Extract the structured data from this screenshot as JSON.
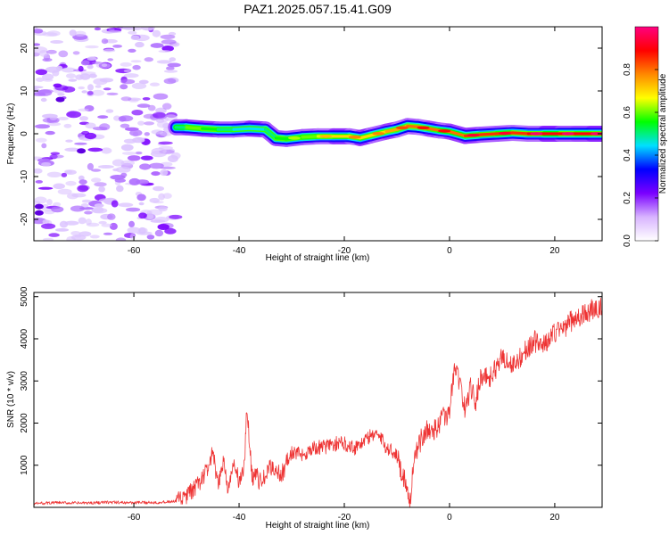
{
  "figure": {
    "title": "PAZ1.2025.057.15.41.G09"
  },
  "chart_data": [
    {
      "type": "heatmap",
      "title": "PAZ1.2025.057.15.41.G09",
      "xlabel": "Height of straight line (km)",
      "ylabel": "Frequency (Hz)",
      "xlim": [
        -79,
        29
      ],
      "ylim": [
        -25,
        25
      ],
      "xticks": [
        -60,
        -40,
        -20,
        0,
        20
      ],
      "yticks": [
        -20,
        -10,
        0,
        10,
        20
      ],
      "colorbar": {
        "label": "Normalized spectral amplitude",
        "range": [
          0,
          1
        ],
        "ticks": [
          0.0,
          0.2,
          0.4,
          0.6,
          0.8
        ],
        "colors": [
          "#ffffff",
          "#d8b4ff",
          "#7a00ff",
          "#0000ff",
          "#00e0ff",
          "#00ff00",
          "#ffff00",
          "#ff8800",
          "#ff0000",
          "#ff0080"
        ]
      },
      "noise_region": {
        "x_range": [
          -79,
          -52
        ],
        "freq_range": [
          -25,
          25
        ],
        "amplitude": 0.15
      },
      "ridge": {
        "x": [
          -52,
          -50,
          -47,
          -44,
          -41,
          -38,
          -35,
          -33,
          -31,
          -28,
          -25,
          -22,
          -19,
          -17,
          -15,
          -12,
          -10,
          -8,
          -6,
          -4,
          -2,
          0,
          3,
          6,
          9,
          12,
          15,
          18,
          21,
          24,
          27,
          29
        ],
        "frequency": [
          1.5,
          1.5,
          1.2,
          1.0,
          1.0,
          1.2,
          1.0,
          -1.0,
          -1.2,
          -0.8,
          -0.6,
          -0.6,
          -0.6,
          -1.0,
          -0.4,
          0.5,
          1.0,
          1.8,
          1.6,
          1.2,
          0.8,
          0.5,
          -0.5,
          -0.2,
          0.0,
          0.2,
          0.0,
          0.0,
          0.0,
          0.0,
          0.0,
          0.0
        ],
        "amplitude": [
          0.5,
          0.6,
          0.55,
          0.5,
          0.45,
          0.45,
          0.5,
          0.55,
          0.55,
          0.6,
          0.65,
          0.7,
          0.7,
          0.7,
          0.7,
          0.75,
          0.75,
          0.8,
          0.8,
          0.8,
          0.8,
          0.8,
          0.85,
          0.85,
          0.85,
          0.85,
          0.9,
          0.9,
          0.9,
          0.9,
          0.9,
          0.9
        ]
      },
      "grid": false
    },
    {
      "type": "line",
      "xlabel": "Height of straight line (km)",
      "ylabel": "SNR (10 * v/v)",
      "xlim": [
        -79,
        29
      ],
      "ylim": [
        0,
        5100
      ],
      "xticks": [
        -60,
        -40,
        -20,
        0,
        20
      ],
      "yticks": [
        1000,
        2000,
        3000,
        4000,
        5000
      ],
      "color": "#ee3333",
      "grid": false,
      "series": [
        {
          "x": [
            -79,
            -75,
            -70,
            -65,
            -60,
            -55,
            -52,
            -50,
            -48,
            -46,
            -45,
            -44,
            -43,
            -42,
            -41,
            -40,
            -39,
            -38.5,
            -38,
            -37.5,
            -37,
            -36,
            -35,
            -34,
            -33,
            -32,
            -31,
            -30,
            -28,
            -26,
            -24,
            -22,
            -20,
            -18,
            -16,
            -14,
            -12,
            -10,
            -9,
            -8,
            -7.5,
            -7,
            -6,
            -5,
            -4,
            -3,
            -2,
            -1,
            0,
            1,
            2,
            3,
            4,
            5,
            6,
            8,
            10,
            12,
            14,
            16,
            18,
            20,
            22,
            24,
            26,
            28,
            29
          ],
          "y": [
            90,
            110,
            100,
            120,
            110,
            120,
            140,
            260,
            500,
            900,
            1300,
            450,
            1150,
            380,
            1050,
            600,
            950,
            2400,
            1500,
            700,
            820,
            600,
            720,
            960,
            900,
            750,
            1050,
            1300,
            1250,
            1400,
            1430,
            1500,
            1520,
            1420,
            1600,
            1780,
            1430,
            1260,
            780,
            520,
            100,
            900,
            1400,
            1750,
            1850,
            1800,
            2000,
            2150,
            2250,
            3450,
            2900,
            2300,
            2850,
            2500,
            3150,
            3100,
            3600,
            3350,
            3650,
            3950,
            3850,
            4150,
            4300,
            4500,
            4600,
            4750,
            4700
          ]
        }
      ]
    }
  ]
}
